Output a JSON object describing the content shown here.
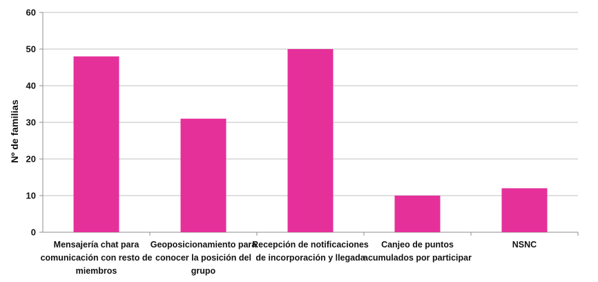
{
  "chart_data": {
    "type": "bar",
    "categories": [
      [
        "Mensajería chat para",
        "comunicación con resto de",
        "miembros"
      ],
      [
        "Geoposicionamiento para",
        "conocer la posición del",
        "grupo"
      ],
      [
        "Recepción de notificaciones",
        "de incorporación y llegada"
      ],
      [
        "Canjeo de puntos",
        "acumulados por participar"
      ],
      [
        "NSNC"
      ]
    ],
    "values": [
      48,
      31,
      50,
      10,
      12
    ],
    "ylabel": "Nº de familias",
    "xlabel": "",
    "ylim": [
      0,
      60
    ],
    "yticks": [
      0,
      10,
      20,
      30,
      40,
      50,
      60
    ],
    "grid": true,
    "bar_color": "#e5309a",
    "grid_color": "#bfbfbf"
  }
}
